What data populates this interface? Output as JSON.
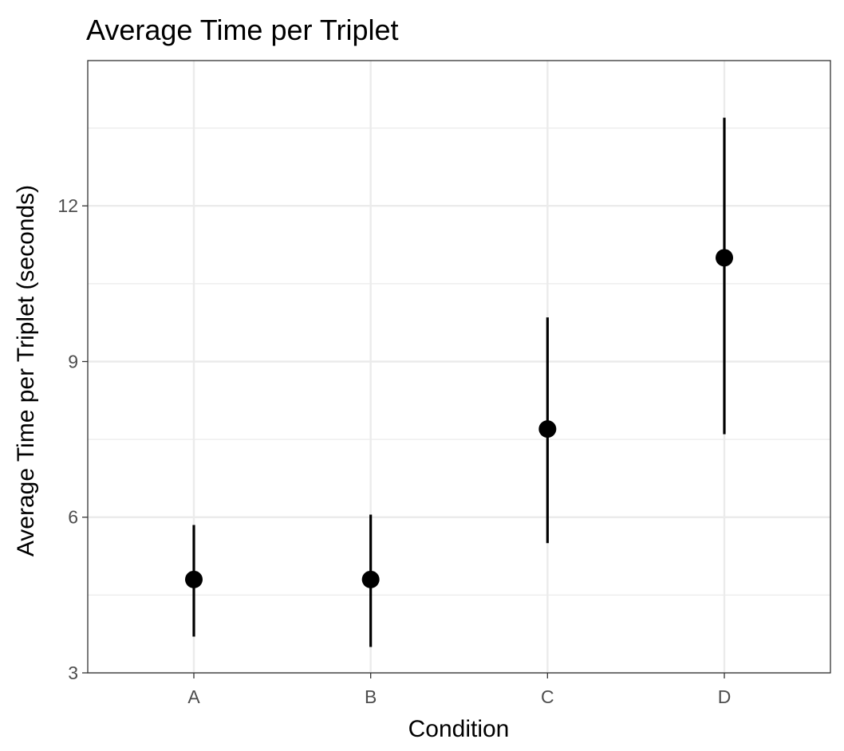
{
  "chart_data": {
    "type": "scatter",
    "title": "Average Time per Triplet",
    "xlabel": "Condition",
    "ylabel": "Average Time per Triplet (seconds)",
    "categories": [
      "A",
      "B",
      "C",
      "D"
    ],
    "series": [
      {
        "values": [
          4.8,
          4.8,
          7.7,
          11.0
        ],
        "lower": [
          3.7,
          3.5,
          5.5,
          7.6
        ],
        "upper": [
          5.85,
          6.05,
          9.85,
          13.7
        ]
      }
    ],
    "yticks": [
      "3",
      "6",
      "9",
      "12"
    ],
    "ytick_values": [
      3,
      6,
      9,
      12
    ],
    "ylim": [
      3,
      14.8
    ],
    "grid": true,
    "legend": "none",
    "colors": {
      "point": "#000000",
      "errorbar": "#000000",
      "grid": "#ebebeb",
      "panel_border": "#333333",
      "tick_text": "#4d4d4d"
    }
  }
}
